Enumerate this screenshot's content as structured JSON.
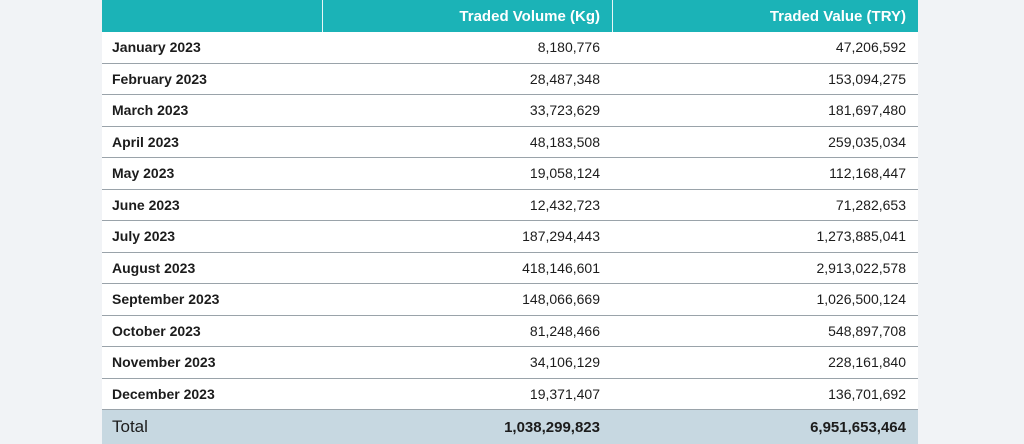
{
  "table": {
    "columns": [
      "Traded Volume (Kg)",
      "Traded Value (TRY)"
    ],
    "rows": [
      [
        "January 2023",
        "8,180,776",
        "47,206,592"
      ],
      [
        "February 2023",
        "28,487,348",
        "153,094,275"
      ],
      [
        "March 2023",
        "33,723,629",
        "181,697,480"
      ],
      [
        "April 2023",
        "48,183,508",
        "259,035,034"
      ],
      [
        "May 2023",
        "19,058,124",
        "112,168,447"
      ],
      [
        "June 2023",
        "12,432,723",
        "71,282,653"
      ],
      [
        "July 2023",
        "187,294,443",
        "1,273,885,041"
      ],
      [
        "August 2023",
        "418,146,601",
        "2,913,022,578"
      ],
      [
        "September 2023",
        "148,066,669",
        "1,026,500,124"
      ],
      [
        "October 2023",
        "81,248,466",
        "548,897,708"
      ],
      [
        "November 2023",
        "34,106,129",
        "228,161,840"
      ],
      [
        "December 2023",
        "19,371,407",
        "136,701,692"
      ]
    ],
    "total": [
      "Total",
      "1,038,299,823",
      "6,951,653,464"
    ]
  }
}
